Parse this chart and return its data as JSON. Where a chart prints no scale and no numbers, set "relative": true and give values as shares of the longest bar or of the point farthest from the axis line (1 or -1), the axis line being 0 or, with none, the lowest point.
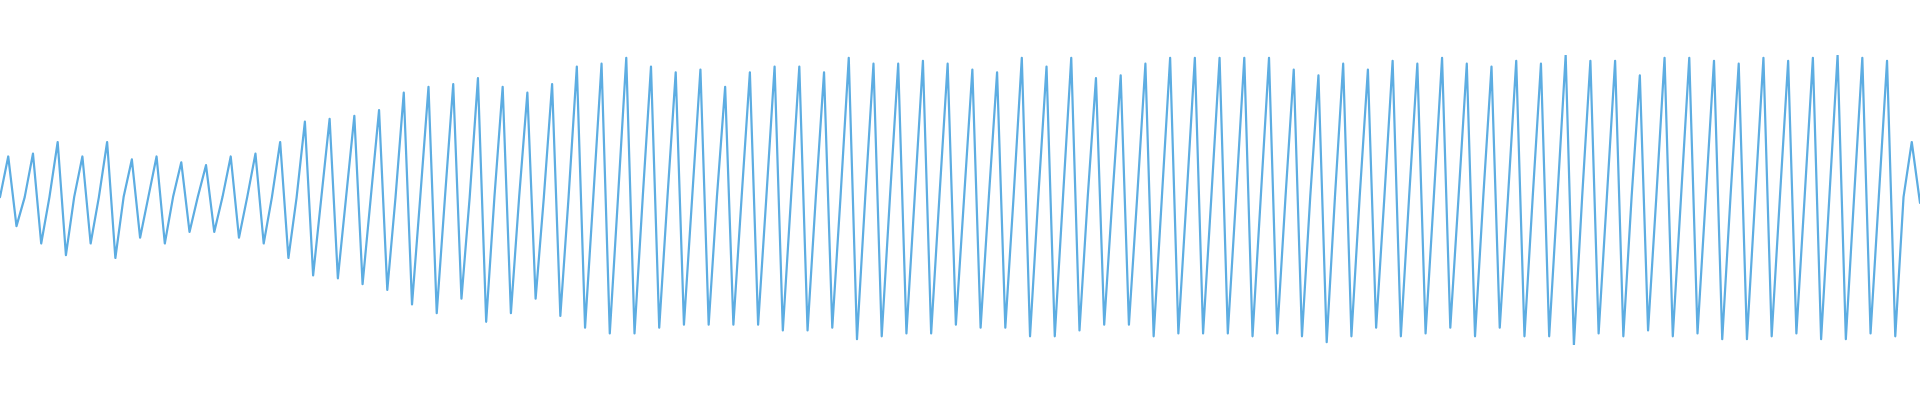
{
  "chart_data": {
    "type": "line",
    "relative": true,
    "color": "#5dade2",
    "line_style": "solid",
    "marker": "none",
    "legend": false,
    "categories": [
      null,
      null,
      null,
      null,
      null,
      null,
      null,
      null,
      null,
      null,
      null,
      null,
      null,
      null,
      null,
      null,
      null,
      null,
      null,
      null,
      null,
      null,
      null,
      null,
      null,
      null,
      null,
      null,
      null,
      null,
      null,
      null,
      null,
      null,
      null,
      null,
      null,
      null,
      null,
      null,
      null,
      null,
      null,
      null,
      null,
      null,
      null,
      null,
      null,
      null,
      null,
      null,
      null,
      null,
      null,
      null,
      null,
      null,
      null,
      null,
      null,
      null,
      null,
      null,
      null,
      null,
      null,
      null,
      null,
      null,
      null,
      null,
      null,
      null,
      null,
      null,
      null,
      null,
      null,
      null,
      null,
      null,
      null,
      null,
      null,
      null,
      null,
      null,
      null,
      null,
      null,
      null,
      null,
      null,
      null,
      null,
      null,
      null,
      null,
      null,
      null,
      null,
      null,
      null,
      null,
      null,
      null,
      null,
      null,
      null,
      null,
      null,
      null,
      null,
      null,
      null,
      null,
      null,
      null,
      null,
      null,
      null,
      null,
      null,
      null,
      null,
      null,
      null,
      null,
      null,
      null,
      null,
      null,
      null,
      null,
      null,
      null,
      null,
      null,
      null,
      null,
      null,
      null,
      null,
      null,
      null,
      null,
      null,
      null,
      null,
      null,
      null,
      null,
      null,
      null,
      null,
      null,
      null,
      null,
      null,
      null,
      null,
      null,
      null,
      null,
      null,
      null,
      null,
      null,
      null,
      null,
      null,
      null,
      null,
      null,
      null,
      null,
      null,
      null,
      null,
      null,
      null,
      null,
      null,
      null,
      null,
      null,
      null,
      null,
      null,
      null,
      null,
      null,
      null,
      null,
      null,
      null,
      null,
      null,
      null,
      null,
      null,
      null,
      null,
      null,
      null,
      null,
      null,
      null,
      null,
      null,
      null,
      null,
      null,
      null,
      null,
      null,
      null,
      null,
      null,
      null,
      null,
      null,
      null,
      null,
      null,
      null,
      null,
      null,
      null,
      null,
      null,
      null,
      null
    ],
    "values": [
      0.51,
      0.65,
      0.41,
      0.51,
      0.66,
      0.35,
      0.51,
      0.7,
      0.31,
      0.51,
      0.65,
      0.35,
      0.51,
      0.7,
      0.3,
      0.51,
      0.64,
      0.37,
      0.51,
      0.65,
      0.35,
      0.51,
      0.63,
      0.39,
      0.51,
      0.62,
      0.39,
      0.51,
      0.65,
      0.37,
      0.51,
      0.66,
      0.35,
      0.51,
      0.7,
      0.3,
      0.51,
      0.77,
      0.24,
      0.51,
      0.78,
      0.23,
      0.51,
      0.79,
      0.21,
      0.51,
      0.81,
      0.19,
      0.51,
      0.87,
      0.14,
      0.51,
      0.89,
      0.11,
      0.51,
      0.9,
      0.16,
      0.51,
      0.92,
      0.08,
      0.51,
      0.89,
      0.11,
      0.51,
      0.87,
      0.16,
      0.51,
      0.9,
      0.1,
      0.51,
      0.96,
      0.06,
      0.51,
      0.97,
      0.04,
      0.51,
      0.99,
      0.04,
      0.51,
      0.96,
      0.06,
      0.51,
      0.94,
      0.07,
      0.51,
      0.95,
      0.07,
      0.51,
      0.89,
      0.07,
      0.51,
      0.94,
      0.07,
      0.51,
      0.96,
      0.05,
      0.51,
      0.96,
      0.05,
      0.51,
      0.94,
      0.06,
      0.51,
      0.99,
      0.02,
      0.51,
      0.97,
      0.03,
      0.51,
      0.97,
      0.04,
      0.51,
      0.98,
      0.04,
      0.51,
      0.97,
      0.07,
      0.51,
      0.95,
      0.06,
      0.51,
      0.94,
      0.06,
      0.51,
      0.99,
      0.03,
      0.51,
      0.96,
      0.03,
      0.51,
      0.99,
      0.05,
      0.51,
      0.92,
      0.07,
      0.51,
      0.93,
      0.07,
      0.51,
      0.97,
      0.03,
      0.51,
      0.99,
      0.04,
      0.51,
      0.99,
      0.04,
      0.51,
      0.99,
      0.04,
      0.51,
      0.99,
      0.03,
      0.51,
      0.99,
      0.04,
      0.51,
      0.95,
      0.03,
      0.51,
      0.93,
      0.01,
      0.51,
      0.97,
      0.03,
      0.51,
      0.95,
      0.06,
      0.51,
      0.98,
      0.03,
      0.51,
      0.97,
      0.04,
      0.51,
      0.99,
      0.06,
      0.51,
      0.97,
      0.03,
      0.51,
      0.96,
      0.06,
      0.51,
      0.98,
      0.03,
      0.51,
      0.97,
      0.03,
      0.51,
      1.0,
      0.0,
      0.51,
      0.98,
      0.04,
      0.51,
      0.98,
      0.03,
      0.51,
      0.93,
      0.05,
      0.51,
      0.99,
      0.03,
      0.51,
      0.99,
      0.04,
      0.51,
      0.98,
      0.02,
      0.51,
      0.97,
      0.02,
      0.51,
      0.99,
      0.03,
      0.51,
      0.98,
      0.04,
      0.51,
      0.99,
      0.02,
      0.51,
      1.0,
      0.02,
      0.51,
      0.99,
      0.04,
      0.51,
      0.98,
      0.03,
      0.51,
      0.7,
      0.49
    ]
  }
}
